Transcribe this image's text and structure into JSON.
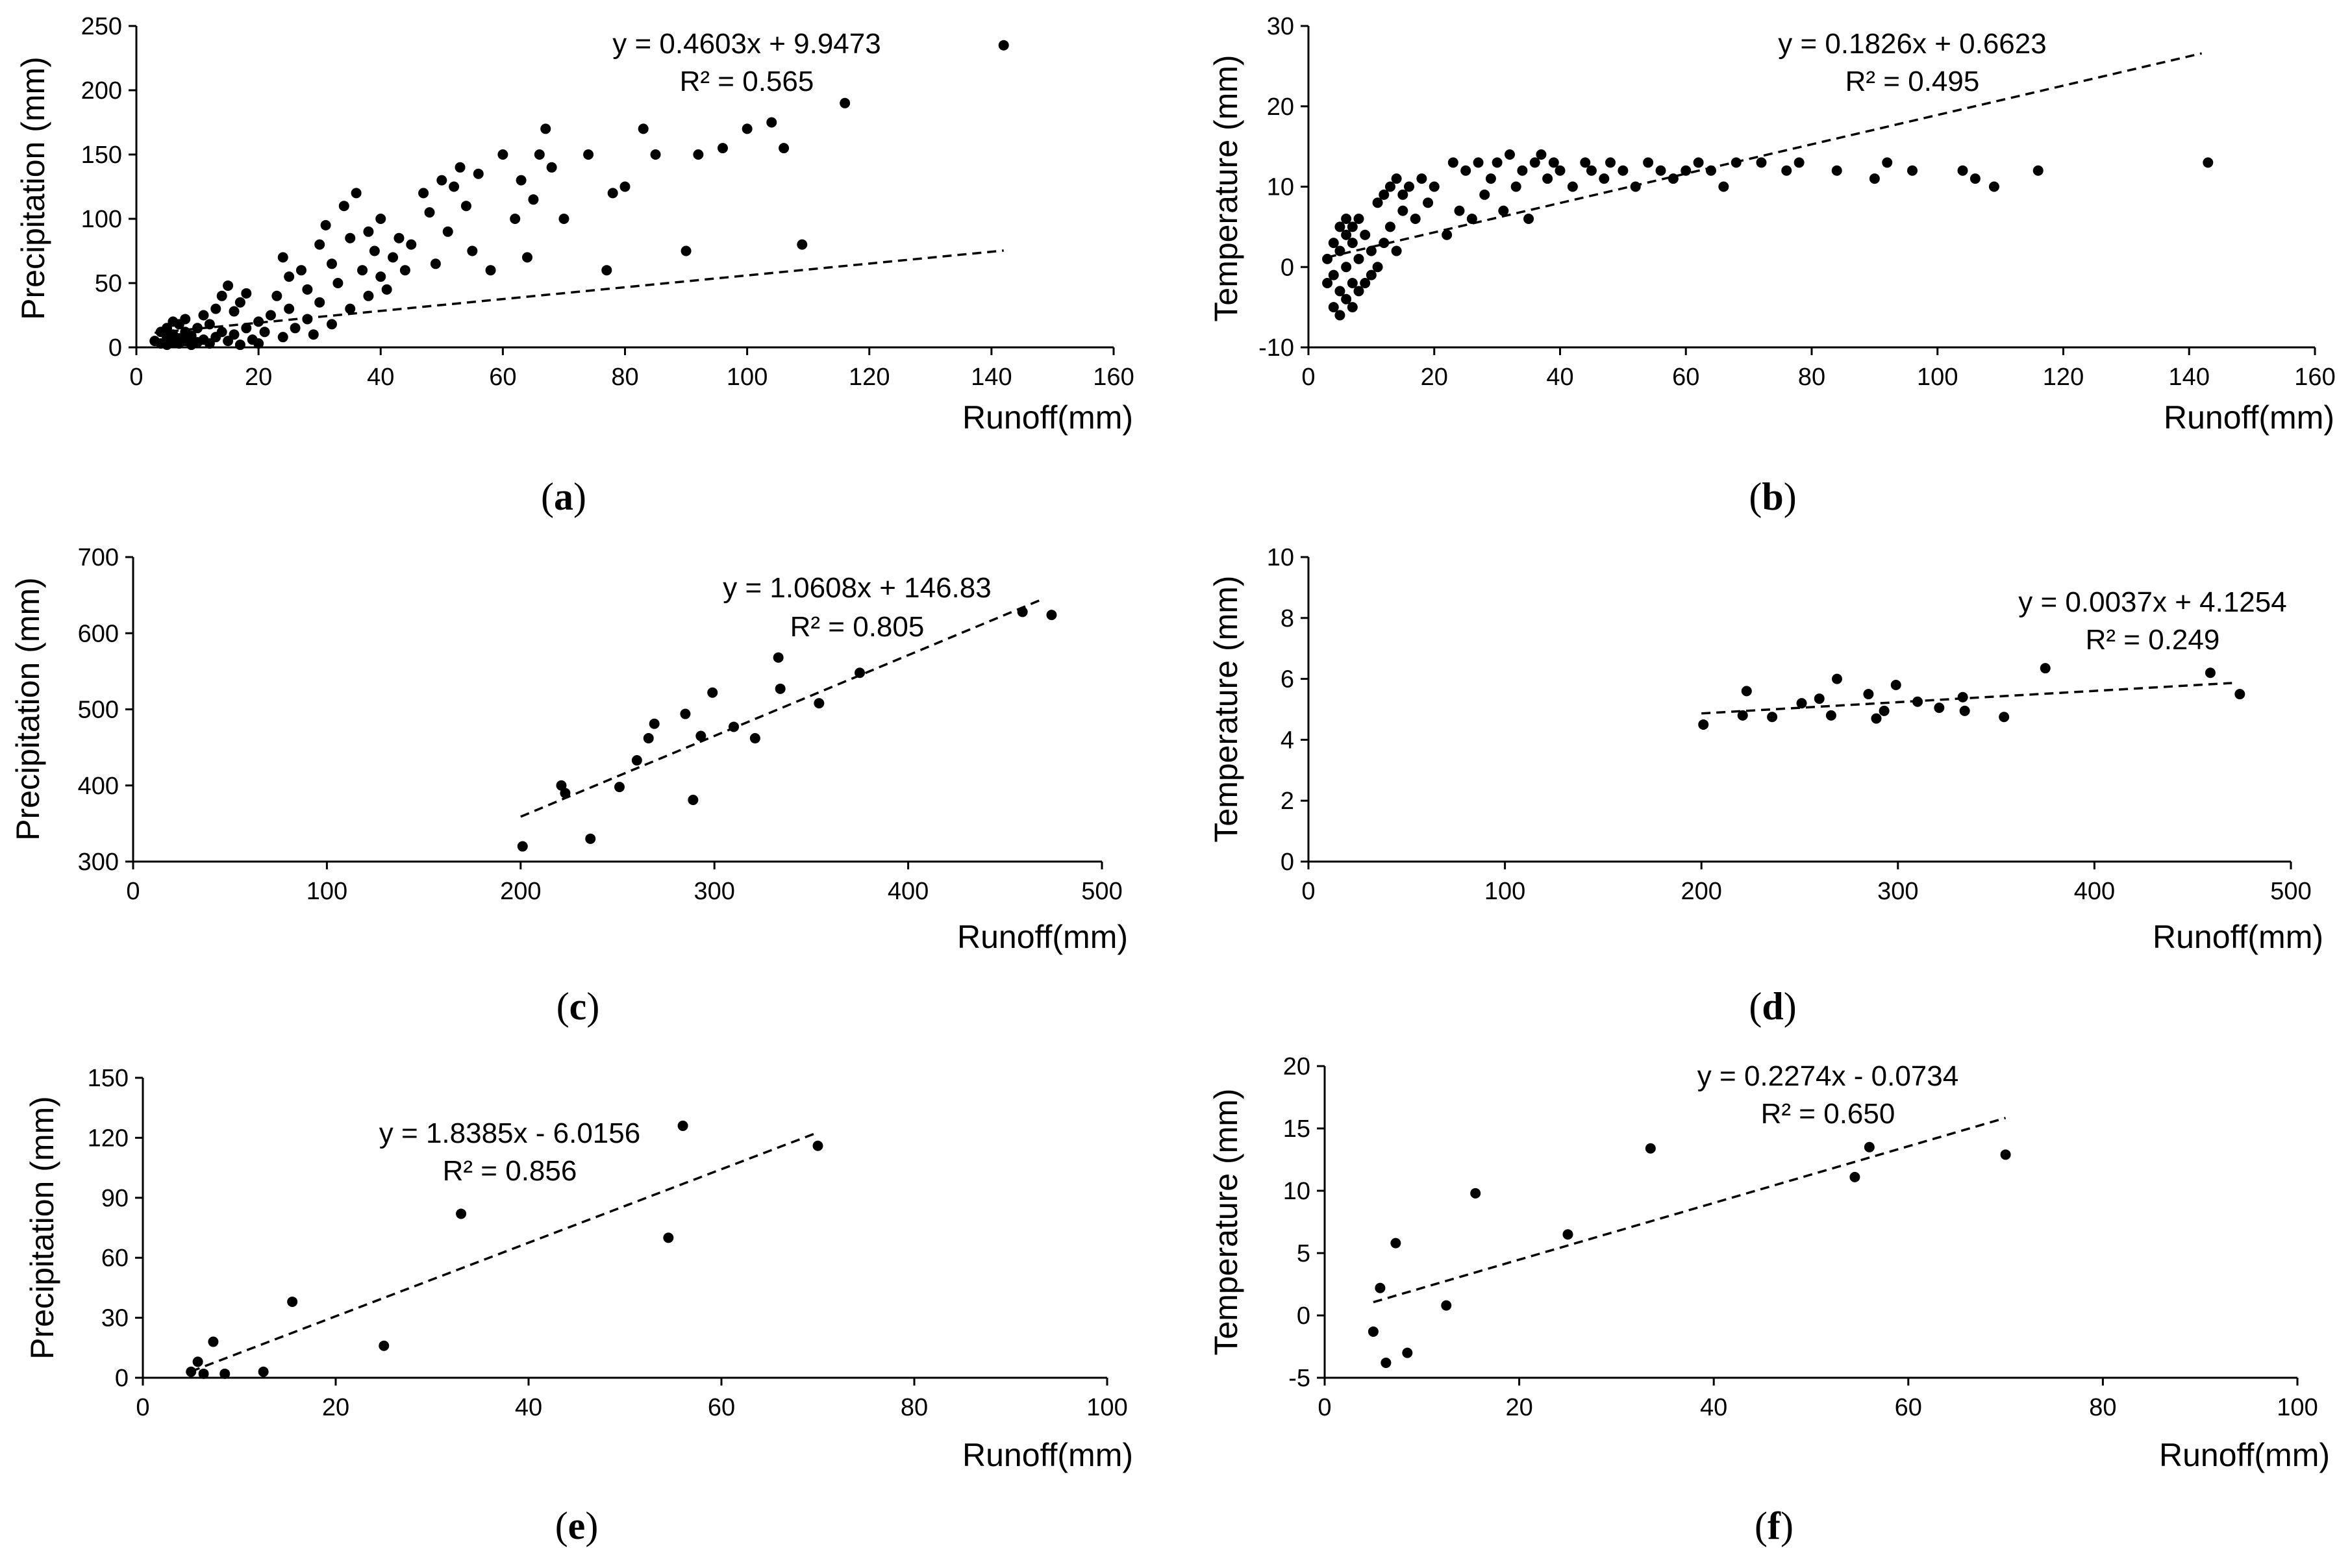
{
  "chart_data": [
    {
      "type": "scatter",
      "panel_label": "(a)",
      "xlabel": "Runoff(mm)",
      "ylabel": "Precipitation (mm)",
      "xlim": [
        0,
        160
      ],
      "ylim": [
        0,
        250
      ],
      "xticks": [
        0,
        20,
        40,
        60,
        80,
        100,
        120,
        140,
        160
      ],
      "yticks": [
        0,
        50,
        100,
        150,
        200,
        250
      ],
      "trendline": {
        "slope": 0.4603,
        "intercept": 9.9473,
        "x_range": [
          3,
          142
        ]
      },
      "equation": "y = 0.4603x + 9.9473",
      "r2": "R² = 0.565",
      "x": [
        3,
        4,
        4,
        5,
        5,
        5,
        6,
        6,
        6,
        7,
        7,
        7,
        8,
        8,
        8,
        9,
        9,
        10,
        10,
        11,
        11,
        12,
        12,
        13,
        13,
        14,
        14,
        15,
        15,
        16,
        16,
        17,
        17,
        18,
        18,
        19,
        20,
        20,
        21,
        22,
        23,
        24,
        24,
        25,
        25,
        26,
        27,
        28,
        28,
        29,
        30,
        30,
        31,
        32,
        32,
        33,
        34,
        35,
        35,
        36,
        37,
        38,
        38,
        39,
        40,
        40,
        41,
        42,
        43,
        44,
        45,
        47,
        48,
        49,
        50,
        51,
        52,
        53,
        54,
        55,
        56,
        58,
        60,
        62,
        63,
        64,
        65,
        66,
        67,
        68,
        70,
        74,
        77,
        78,
        80,
        83,
        85,
        90,
        92,
        96,
        100,
        104,
        106,
        109,
        116,
        142
      ],
      "y": [
        5,
        3,
        12,
        2,
        8,
        15,
        4,
        10,
        20,
        3,
        7,
        18,
        5,
        12,
        22,
        2,
        9,
        4,
        15,
        6,
        25,
        3,
        18,
        8,
        30,
        12,
        40,
        5,
        48,
        10,
        28,
        2,
        35,
        15,
        42,
        6,
        3,
        20,
        12,
        25,
        40,
        8,
        70,
        30,
        55,
        15,
        60,
        22,
        45,
        10,
        80,
        35,
        95,
        18,
        65,
        50,
        110,
        30,
        85,
        120,
        60,
        90,
        40,
        75,
        55,
        100,
        45,
        70,
        85,
        60,
        80,
        120,
        105,
        65,
        130,
        90,
        125,
        140,
        110,
        75,
        135,
        60,
        150,
        100,
        130,
        70,
        115,
        150,
        170,
        140,
        100,
        150,
        60,
        120,
        125,
        170,
        150,
        75,
        150,
        155,
        170,
        175,
        155,
        80,
        190,
        235
      ]
    },
    {
      "type": "scatter",
      "panel_label": "(b)",
      "xlabel": "Runoff(mm)",
      "ylabel": "Temperature (mm)",
      "xlim": [
        0,
        160
      ],
      "ylim": [
        -10,
        30
      ],
      "xticks": [
        0,
        20,
        40,
        60,
        80,
        100,
        120,
        140,
        160
      ],
      "yticks": [
        -10,
        0,
        10,
        20,
        30
      ],
      "trendline": {
        "slope": 0.1826,
        "intercept": 0.6623,
        "x_range": [
          3,
          142
        ]
      },
      "equation": "y = 0.1826x + 0.6623",
      "r2": "R² = 0.495",
      "x": [
        3,
        3,
        4,
        4,
        4,
        5,
        5,
        5,
        5,
        6,
        6,
        6,
        6,
        7,
        7,
        7,
        7,
        8,
        8,
        8,
        9,
        9,
        10,
        10,
        11,
        11,
        12,
        12,
        13,
        13,
        14,
        14,
        15,
        15,
        16,
        17,
        18,
        19,
        20,
        22,
        23,
        24,
        25,
        26,
        27,
        28,
        29,
        30,
        31,
        32,
        33,
        34,
        35,
        36,
        37,
        38,
        39,
        40,
        42,
        44,
        45,
        47,
        48,
        50,
        52,
        54,
        56,
        58,
        60,
        62,
        64,
        66,
        68,
        72,
        76,
        78,
        84,
        90,
        92,
        96,
        104,
        106,
        109,
        116,
        143
      ],
      "y": [
        -2,
        1,
        -5,
        3,
        -1,
        -6,
        2,
        5,
        -3,
        -4,
        0,
        4,
        6,
        -5,
        -2,
        3,
        5,
        -3,
        1,
        6,
        -2,
        4,
        -1,
        2,
        0,
        8,
        3,
        9,
        5,
        10,
        2,
        11,
        7,
        9,
        10,
        6,
        11,
        8,
        10,
        4,
        13,
        7,
        12,
        6,
        13,
        9,
        11,
        13,
        7,
        14,
        10,
        12,
        6,
        13,
        14,
        11,
        13,
        12,
        10,
        13,
        12,
        11,
        13,
        12,
        10,
        13,
        12,
        11,
        12,
        13,
        12,
        10,
        13,
        13,
        12,
        13,
        12,
        11,
        13,
        12,
        12,
        11,
        10,
        12,
        13
      ]
    },
    {
      "type": "scatter",
      "panel_label": "(c)",
      "xlabel": "Runoff(mm)",
      "ylabel": "Precipitation (mm)",
      "xlim": [
        0,
        500
      ],
      "ylim": [
        300,
        700
      ],
      "xticks": [
        0,
        100,
        200,
        300,
        400,
        500
      ],
      "yticks": [
        300,
        400,
        500,
        600,
        700
      ],
      "trendline": {
        "slope": 1.0608,
        "intercept": 146.83,
        "x_range": [
          200,
          470
        ]
      },
      "equation": "y = 1.0608x + 146.83",
      "r2": "R² = 0.805",
      "x": [
        201,
        221,
        223,
        236,
        251,
        260,
        266,
        269,
        285,
        289,
        293,
        299,
        310,
        321,
        333,
        334,
        354,
        375,
        459,
        474
      ],
      "y": [
        320,
        400,
        390,
        330,
        398,
        433,
        462,
        481,
        494,
        381,
        465,
        522,
        477,
        462,
        568,
        527,
        508,
        548,
        628,
        624
      ]
    },
    {
      "type": "scatter",
      "panel_label": "(d)",
      "xlabel": "Runoff(mm)",
      "ylabel": "Temperature (mm)",
      "xlim": [
        0,
        500
      ],
      "ylim": [
        0,
        10
      ],
      "xticks": [
        0,
        100,
        200,
        300,
        400,
        500
      ],
      "yticks": [
        0,
        2,
        4,
        6,
        8,
        10
      ],
      "trendline": {
        "slope": 0.0037,
        "intercept": 4.1254,
        "x_range": [
          200,
          470
        ]
      },
      "equation": "y = 0.0037x + 4.1254",
      "r2": "R² = 0.249",
      "x": [
        201,
        221,
        223,
        236,
        251,
        260,
        266,
        269,
        285,
        289,
        293,
        299,
        310,
        321,
        333,
        334,
        354,
        375,
        459,
        474
      ],
      "y": [
        4.5,
        4.8,
        5.6,
        4.75,
        5.2,
        5.35,
        4.8,
        6.0,
        5.5,
        4.7,
        4.95,
        5.8,
        5.25,
        5.05,
        5.4,
        4.95,
        4.75,
        6.35,
        6.2,
        5.5
      ]
    },
    {
      "type": "scatter",
      "panel_label": "(e)",
      "xlabel": "Runoff(mm)",
      "ylabel": "Precipitation (mm)",
      "xlim": [
        0,
        100
      ],
      "ylim": [
        0,
        150
      ],
      "xticks": [
        0,
        20,
        40,
        60,
        80,
        100
      ],
      "yticks": [
        0,
        30,
        60,
        90,
        120,
        150
      ],
      "trendline": {
        "slope": 1.8385,
        "intercept": -6.0156,
        "x_range": [
          5,
          70
        ]
      },
      "equation": "y = 1.8385x - 6.0156",
      "r2": "R² = 0.856",
      "x": [
        5,
        5.7,
        6.3,
        7.3,
        8.5,
        12.5,
        15.5,
        25,
        33,
        54.5,
        56,
        70
      ],
      "y": [
        3,
        8,
        2,
        18,
        2,
        3,
        38,
        16,
        82,
        70,
        126,
        116
      ]
    },
    {
      "type": "scatter",
      "panel_label": "(f)",
      "xlabel": "Runoff(mm)",
      "ylabel": "Temperature (mm)",
      "xlim": [
        0,
        100
      ],
      "ylim": [
        -5,
        20
      ],
      "xticks": [
        0,
        20,
        40,
        60,
        80,
        100
      ],
      "yticks": [
        -5,
        0,
        5,
        10,
        15,
        20
      ],
      "trendline": {
        "slope": 0.2274,
        "intercept": -0.0734,
        "x_range": [
          5,
          70
        ]
      },
      "equation": "y = 0.2274x - 0.0734",
      "r2": "R² = 0.650",
      "x": [
        5,
        5.7,
        6.3,
        7.3,
        8.5,
        12.5,
        15.5,
        25,
        33.5,
        54.5,
        56,
        70
      ],
      "y": [
        -1.3,
        2.2,
        -3.8,
        5.8,
        -3,
        0.8,
        9.8,
        6.5,
        13.4,
        11.1,
        13.5,
        12.9
      ]
    }
  ]
}
